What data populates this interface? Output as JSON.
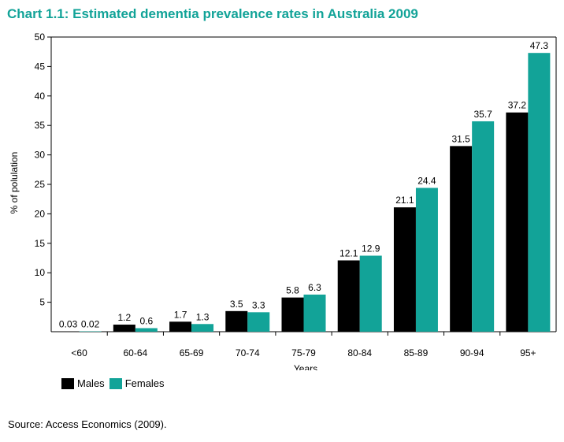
{
  "header": {
    "title": "Chart 1.1: Estimated dementia prevalence rates in Australia 2009"
  },
  "source": "Source: Access Economics (2009).",
  "colors": {
    "males": "#000000",
    "females": "#12a398",
    "title": "#12a398"
  },
  "chart_data": {
    "type": "bar",
    "title": "Chart 1.1: Estimated dementia prevalence rates in Australia 2009",
    "xlabel": "Years",
    "ylabel": "% of polulation",
    "ylim": [
      0,
      50
    ],
    "yticks": [
      5,
      10,
      15,
      20,
      25,
      30,
      35,
      40,
      45,
      50
    ],
    "grid": false,
    "legend_position": "bottom-left",
    "categories": [
      "<60",
      "60-64",
      "65-69",
      "70-74",
      "75-79",
      "80-84",
      "85-89",
      "90-94",
      "95+"
    ],
    "series": [
      {
        "name": "Males",
        "color": "#000000",
        "values": [
          0.03,
          1.2,
          1.7,
          3.5,
          5.8,
          12.1,
          21.1,
          31.5,
          37.2
        ],
        "labels": [
          "0.03",
          "1.2",
          "1.7",
          "3.5",
          "5.8",
          "12.1",
          "21.1",
          "31.5",
          "37.2"
        ]
      },
      {
        "name": "Females",
        "color": "#12a398",
        "values": [
          0.02,
          0.6,
          1.3,
          3.3,
          6.3,
          12.9,
          24.4,
          35.7,
          47.3
        ],
        "labels": [
          "0.02",
          "0.6",
          "1.3",
          "3.3",
          "6.3",
          "12.9",
          "24.4",
          "35.7",
          "47.3"
        ]
      }
    ]
  }
}
